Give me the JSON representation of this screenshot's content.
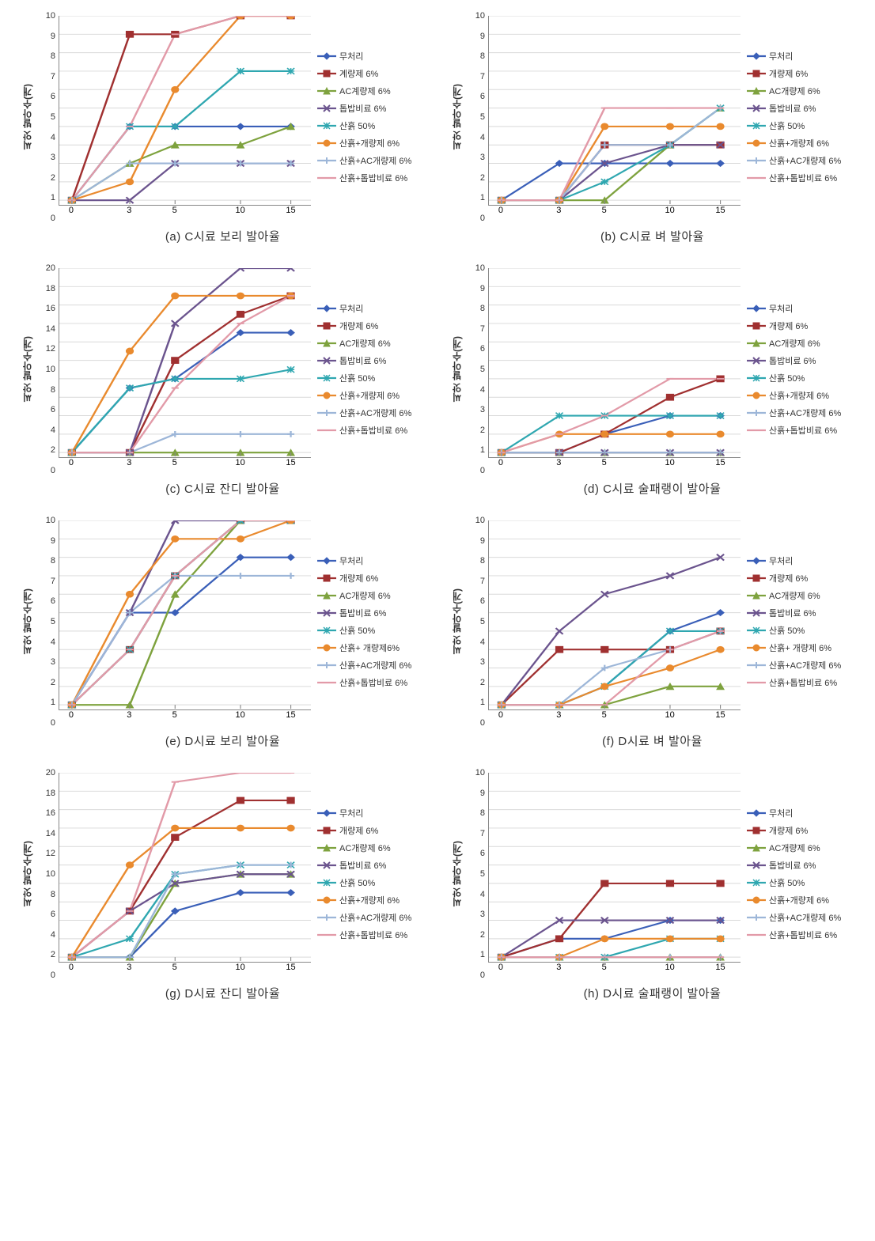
{
  "global": {
    "ylabel": "씨앗 발아수(개)",
    "x_values": [
      0,
      3,
      5,
      10,
      15
    ],
    "x_positions_pct": [
      5,
      28,
      46,
      72,
      92
    ],
    "series_meta": [
      {
        "key": "s0",
        "label": "무처리",
        "color": "#3a5fb8",
        "marker": "diamond"
      },
      {
        "key": "s1",
        "label": "개량제 6%",
        "color": "#a03030",
        "marker": "square"
      },
      {
        "key": "s2",
        "label": "AC개량제 6%",
        "color": "#7ea23e",
        "marker": "triangle"
      },
      {
        "key": "s3",
        "label": "톱밥비료 6%",
        "color": "#6b548e",
        "marker": "x"
      },
      {
        "key": "s4",
        "label": "산흙 50%",
        "color": "#2fa7b0",
        "marker": "asterisk"
      },
      {
        "key": "s5",
        "label": "산흙+개량제 6%",
        "color": "#e98a2e",
        "marker": "circle"
      },
      {
        "key": "s6",
        "label": "산흙+AC개량제 6%",
        "color": "#9db6d8",
        "marker": "plus"
      },
      {
        "key": "s7",
        "label": "산흙+톱밥비료 6%",
        "color": "#e29aa8",
        "marker": "dash"
      }
    ],
    "background_color": "#ffffff",
    "grid_color": "#d9d9d9",
    "line_width": 2.2,
    "marker_size": 4,
    "caption_fontsize": 15,
    "legend_fontsize": 11,
    "tick_fontsize": 11
  },
  "charts": [
    {
      "id": "a",
      "caption": "(a) C시료 보리 발아율",
      "ylim": [
        0,
        10
      ],
      "ytick_step": 1,
      "legend_label_s1": "계량제 6%",
      "legend_label_s2": "AC계량제 6%",
      "series": {
        "s0": [
          0,
          4,
          4,
          4,
          4
        ],
        "s1": [
          0,
          9,
          9,
          10,
          10
        ],
        "s2": [
          0,
          2,
          3,
          3,
          4
        ],
        "s3": [
          0,
          0,
          2,
          2,
          2
        ],
        "s4": [
          0,
          4,
          4,
          7,
          7
        ],
        "s5": [
          0,
          1,
          6,
          10,
          10
        ],
        "s6": [
          0,
          2,
          2,
          2,
          2
        ],
        "s7": [
          0,
          4,
          9,
          10,
          10
        ]
      }
    },
    {
      "id": "b",
      "caption": "(b) C시료 벼 발아율",
      "ylim": [
        0,
        10
      ],
      "ytick_step": 1,
      "series": {
        "s0": [
          0,
          2,
          2,
          2,
          2
        ],
        "s1": [
          0,
          0,
          3,
          3,
          3
        ],
        "s2": [
          0,
          0,
          0,
          3,
          5
        ],
        "s3": [
          0,
          0,
          2,
          3,
          3
        ],
        "s4": [
          0,
          0,
          1,
          3,
          5
        ],
        "s5": [
          0,
          0,
          4,
          4,
          4
        ],
        "s6": [
          0,
          0,
          3,
          3,
          5
        ],
        "s7": [
          0,
          0,
          5,
          5,
          5
        ]
      }
    },
    {
      "id": "c",
      "caption": "(c) C시료 잔디 발아율",
      "ylim": [
        0,
        20
      ],
      "ytick_step": 2,
      "series": {
        "s0": [
          0,
          7,
          8,
          13,
          13
        ],
        "s1": [
          0,
          0,
          10,
          15,
          17
        ],
        "s2": [
          0,
          0,
          0,
          0,
          0
        ],
        "s3": [
          0,
          0,
          14,
          20,
          20
        ],
        "s4": [
          0,
          7,
          8,
          8,
          9
        ],
        "s5": [
          0,
          11,
          17,
          17,
          17
        ],
        "s6": [
          0,
          0,
          2,
          2,
          2
        ],
        "s7": [
          0,
          0,
          7,
          14,
          17
        ]
      }
    },
    {
      "id": "d",
      "caption": "(d) C시료 술패랭이 발아율",
      "ylim": [
        0,
        10
      ],
      "ytick_step": 1,
      "series": {
        "s0": [
          0,
          0,
          1,
          2,
          2
        ],
        "s1": [
          0,
          0,
          1,
          3,
          4
        ],
        "s2": [
          0,
          0,
          0,
          0,
          0
        ],
        "s3": [
          0,
          0,
          0,
          0,
          0
        ],
        "s4": [
          0,
          2,
          2,
          2,
          2
        ],
        "s5": [
          0,
          1,
          1,
          1,
          1
        ],
        "s6": [
          0,
          0,
          0,
          0,
          0
        ],
        "s7": [
          0,
          1,
          2,
          4,
          4
        ]
      }
    },
    {
      "id": "e",
      "caption": "(e) D시료 보리 발아율",
      "ylim": [
        0,
        10
      ],
      "ytick_step": 1,
      "legend_label_s5": "산흙+ 개량제6%",
      "series": {
        "s0": [
          0,
          5,
          5,
          8,
          8
        ],
        "s1": [
          0,
          3,
          7,
          10,
          10
        ],
        "s2": [
          0,
          0,
          6,
          10,
          10
        ],
        "s3": [
          0,
          5,
          10,
          10,
          10
        ],
        "s4": [
          0,
          3,
          7,
          10,
          10
        ],
        "s5": [
          0,
          6,
          9,
          9,
          10
        ],
        "s6": [
          0,
          5,
          7,
          7,
          7
        ],
        "s7": [
          0,
          3,
          7,
          10,
          10
        ]
      }
    },
    {
      "id": "f",
      "caption": "(f) D시료 벼 발아율",
      "ylim": [
        0,
        10
      ],
      "ytick_step": 1,
      "legend_label_s5": "산흙+ 개량제 6%",
      "series": {
        "s0": [
          0,
          0,
          1,
          4,
          5
        ],
        "s1": [
          0,
          3,
          3,
          3,
          4
        ],
        "s2": [
          0,
          0,
          0,
          1,
          1
        ],
        "s3": [
          0,
          4,
          6,
          7,
          8
        ],
        "s4": [
          0,
          0,
          1,
          4,
          4
        ],
        "s5": [
          0,
          0,
          1,
          2,
          3
        ],
        "s6": [
          0,
          0,
          2,
          3,
          4
        ],
        "s7": [
          0,
          0,
          0,
          3,
          4
        ]
      }
    },
    {
      "id": "g",
      "caption": "(g) D시료 잔디 발아율",
      "ylim": [
        0,
        20
      ],
      "ytick_step": 2,
      "series": {
        "s0": [
          0,
          0,
          5,
          7,
          7
        ],
        "s1": [
          0,
          5,
          13,
          17,
          17
        ],
        "s2": [
          0,
          0,
          8,
          9,
          9
        ],
        "s3": [
          0,
          5,
          8,
          9,
          9
        ],
        "s4": [
          0,
          2,
          9,
          10,
          10
        ],
        "s5": [
          0,
          10,
          14,
          14,
          14
        ],
        "s6": [
          0,
          0,
          9,
          10,
          10
        ],
        "s7": [
          0,
          5,
          19,
          20,
          20
        ]
      }
    },
    {
      "id": "h",
      "caption": "(h) D시료 술패랭이 발아율",
      "ylim": [
        0,
        10
      ],
      "ytick_step": 1,
      "series": {
        "s0": [
          0,
          1,
          1,
          2,
          2
        ],
        "s1": [
          0,
          1,
          4,
          4,
          4
        ],
        "s2": [
          0,
          0,
          0,
          0,
          0
        ],
        "s3": [
          0,
          2,
          2,
          2,
          2
        ],
        "s4": [
          0,
          0,
          0,
          1,
          1
        ],
        "s5": [
          0,
          0,
          1,
          1,
          1
        ],
        "s6": [
          0,
          0,
          0,
          0,
          0
        ],
        "s7": [
          0,
          0,
          0,
          0,
          0
        ]
      }
    }
  ]
}
